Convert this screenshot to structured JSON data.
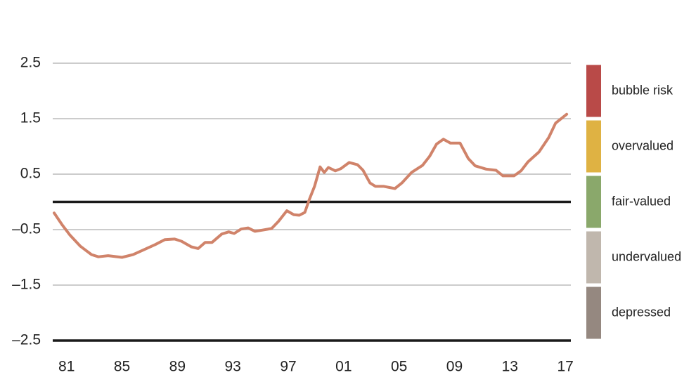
{
  "chart_data": {
    "type": "line",
    "x": [
      1980.1,
      1980.7,
      1981.25,
      1982,
      1982.8,
      1983.3,
      1984,
      1985,
      1985.8,
      1986.6,
      1987.4,
      1988.1,
      1988.8,
      1989.3,
      1990,
      1990.5,
      1991,
      1991.5,
      1992.2,
      1992.7,
      1993.1,
      1993.6,
      1994.1,
      1994.6,
      1995.1,
      1995.8,
      1996.3,
      1996.9,
      1997.4,
      1997.8,
      1998.2,
      1998.5,
      1998.9,
      1999.3,
      1999.6,
      1999.9,
      2000.4,
      2000.8,
      2001.4,
      2002,
      2002.4,
      2002.9,
      2003.3,
      2003.9,
      2004.7,
      2005.2,
      2005.9,
      2006.7,
      2007.2,
      2007.7,
      2008.2,
      2008.7,
      2009.4,
      2010,
      2010.5,
      2011.3,
      2012,
      2012.5,
      2013.3,
      2013.8,
      2014.3,
      2015.1,
      2015.8,
      2016.3,
      2017.1
    ],
    "series": [
      {
        "color": "#d0836a",
        "values": [
          -0.2,
          -0.42,
          -0.6,
          -0.8,
          -0.95,
          -0.99,
          -0.97,
          -1.0,
          -0.95,
          -0.86,
          -0.77,
          -0.68,
          -0.67,
          -0.71,
          -0.81,
          -0.84,
          -0.73,
          -0.73,
          -0.58,
          -0.54,
          -0.57,
          -0.49,
          -0.47,
          -0.53,
          -0.51,
          -0.48,
          -0.35,
          -0.16,
          -0.23,
          -0.24,
          -0.19,
          0.03,
          0.28,
          0.63,
          0.53,
          0.62,
          0.56,
          0.6,
          0.71,
          0.67,
          0.57,
          0.34,
          0.28,
          0.28,
          0.24,
          0.34,
          0.53,
          0.66,
          0.82,
          1.04,
          1.13,
          1.06,
          1.06,
          0.78,
          0.65,
          0.59,
          0.57,
          0.47,
          0.47,
          0.56,
          0.72,
          0.9,
          1.16,
          1.42,
          1.58
        ]
      }
    ],
    "xlim": [
      1980,
      2017.4
    ],
    "xticks": [
      {
        "value": 1981,
        "label": "81"
      },
      {
        "value": 1985,
        "label": "85"
      },
      {
        "value": 1989,
        "label": "89"
      },
      {
        "value": 1993,
        "label": "93"
      },
      {
        "value": 1997,
        "label": "97"
      },
      {
        "value": 2001,
        "label": "01"
      },
      {
        "value": 2005,
        "label": "05"
      },
      {
        "value": 2009,
        "label": "09"
      },
      {
        "value": 2013,
        "label": "13"
      },
      {
        "value": 2017,
        "label": "17"
      }
    ],
    "ylim": [
      -2.5,
      2.5
    ],
    "yticks": [
      {
        "value": 2.5,
        "label": "2.5"
      },
      {
        "value": 1.5,
        "label": "1.5"
      },
      {
        "value": 0.5,
        "label": "0.5"
      },
      {
        "value": -0.5,
        "label": "–0.5"
      },
      {
        "value": -1.5,
        "label": "–1.5"
      },
      {
        "value": -2.5,
        "label": "–2.5"
      }
    ],
    "reference_lines": [
      0,
      -2.5
    ],
    "grid": true,
    "zones": [
      {
        "name": "bubble risk",
        "color": "#b94a48",
        "range": [
          1.5,
          2.5
        ]
      },
      {
        "name": "overvalued",
        "color": "#dfb243",
        "range": [
          0.5,
          1.5
        ]
      },
      {
        "name": "fair-valued",
        "color": "#8aa86b",
        "range": [
          -0.5,
          0.5
        ]
      },
      {
        "name": "undervalued",
        "color": "#c0b7ad",
        "range": [
          -1.5,
          -0.5
        ]
      },
      {
        "name": "depressed",
        "color": "#958880",
        "range": [
          -2.5,
          -1.5
        ]
      }
    ]
  }
}
